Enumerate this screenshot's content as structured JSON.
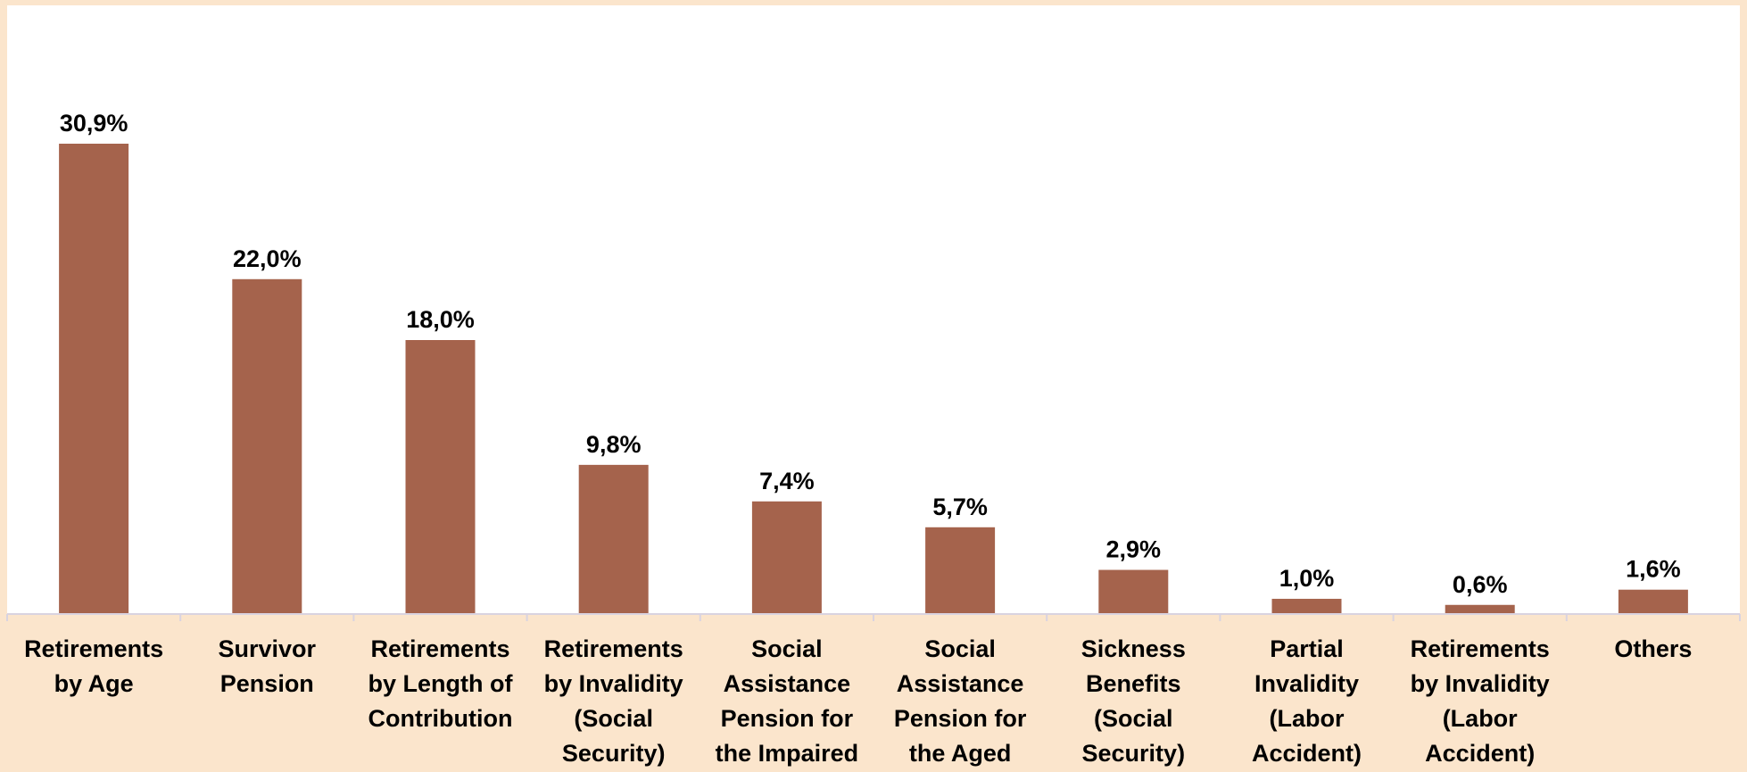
{
  "chart_data": {
    "type": "bar",
    "categories": [
      [
        "Retirements",
        "by Age"
      ],
      [
        "Survivor",
        "Pension"
      ],
      [
        "Retirements",
        "by Length of",
        "Contribution"
      ],
      [
        "Retirements",
        "by Invalidity",
        "(Social",
        "Security)"
      ],
      [
        "Social",
        "Assistance",
        "Pension for",
        "the Impaired"
      ],
      [
        "Social",
        "Assistance",
        "Pension for",
        "the Aged"
      ],
      [
        "Sickness",
        "Benefits",
        "(Social",
        "Security)"
      ],
      [
        "Partial",
        "Invalidity",
        "(Labor",
        "Accident)"
      ],
      [
        "Retirements",
        "by Invalidity",
        "(Labor",
        "Accident)"
      ],
      [
        "Others"
      ]
    ],
    "values": [
      30.9,
      22.0,
      18.0,
      9.8,
      7.4,
      5.7,
      2.9,
      1.0,
      0.6,
      1.6
    ],
    "value_labels": [
      "30,9%",
      "22,0%",
      "18,0%",
      "9,8%",
      "7,4%",
      "5,7%",
      "2,9%",
      "1,0%",
      "0,6%",
      "1,6%"
    ],
    "ylim": [
      0,
      40
    ],
    "grid": false,
    "legend": "none",
    "colors": {
      "bar": "#a5634c",
      "plot_background": "#ffffff",
      "page_background": "#fbe5cc",
      "axis": "#d9d3e0"
    }
  }
}
